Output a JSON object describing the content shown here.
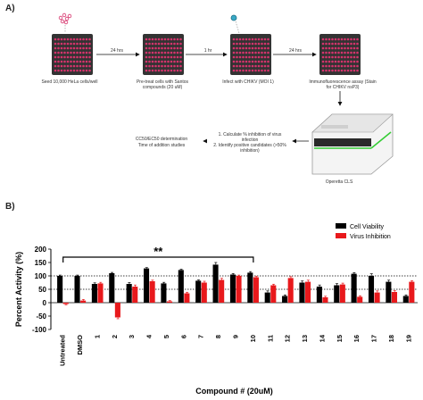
{
  "panel_a": {
    "label": "A)",
    "steps": [
      "Seed 10,000 HeLa cells/well",
      "Pre-treat cells with Santos compounds (20 uM)",
      "Infect with CHIKV (MOI 1)",
      "Immunofluorescence assay (Stain for CHIKV nsP3)"
    ],
    "arrows": [
      "24 hrs",
      "1 hr",
      "24 hrs"
    ],
    "analysis": [
      "1. Calculate % inhibition of virus infection",
      "2. Identify positive candidates (>50% inhibition)"
    ],
    "determination": [
      "CC50/EC50 determination",
      "Time of addition studies"
    ],
    "instrument": "Operetta CLS",
    "colors": {
      "well": "#d6336c",
      "plate": "#333333",
      "instrument_accent": "#33cc33"
    }
  },
  "panel_b": {
    "label": "B)",
    "significance": "**"
  },
  "chart_data": {
    "type": "bar",
    "xlabel": "Compound # (20uM)",
    "ylabel": "Percent Activity (%)",
    "ylim": [
      -100,
      200
    ],
    "yticks": [
      -100,
      -50,
      0,
      50,
      100,
      150,
      200
    ],
    "reference_lines": [
      100,
      50
    ],
    "legend_position": "top-right",
    "categories": [
      "Untreated",
      "DMSO",
      "1",
      "2",
      "3",
      "4",
      "5",
      "6",
      "7",
      "8",
      "9",
      "10",
      "11",
      "12",
      "13",
      "14",
      "15",
      "16",
      "17",
      "18",
      "19"
    ],
    "series": [
      {
        "name": "Cell Viability",
        "color": "#000000",
        "values": [
          100,
          100,
          70,
          110,
          70,
          128,
          72,
          122,
          82,
          142,
          105,
          112,
          38,
          25,
          75,
          60,
          65,
          108,
          100,
          78,
          25
        ],
        "errors": [
          3,
          3,
          4,
          3,
          5,
          3,
          4,
          3,
          3,
          8,
          4,
          4,
          6,
          4,
          6,
          6,
          6,
          4,
          8,
          6,
          4
        ]
      },
      {
        "name": "Virus Inhibition",
        "color": "#e8191c",
        "values": [
          -5,
          8,
          72,
          -55,
          60,
          80,
          5,
          35,
          75,
          85,
          100,
          95,
          65,
          92,
          78,
          20,
          68,
          22,
          38,
          40,
          78
        ],
        "errors": [
          3,
          4,
          4,
          5,
          6,
          4,
          3,
          4,
          5,
          6,
          3,
          4,
          4,
          5,
          6,
          4,
          5,
          4,
          6,
          5,
          4
        ]
      }
    ]
  }
}
